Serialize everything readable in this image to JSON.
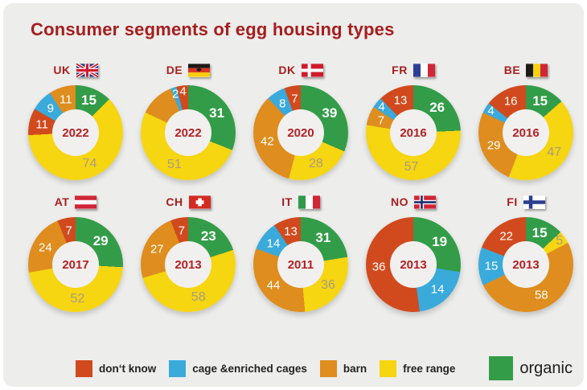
{
  "title": "Consumer segments of egg housing types",
  "colors": {
    "dont_know": "#d14a1e",
    "cage": "#3aaadb",
    "barn": "#de8d1e",
    "free_range": "#f6d511",
    "organic": "#339c48",
    "title_red": "#a51e1f",
    "year_red": "#b22125",
    "label_on_yellow": "#a89e82",
    "card_background": "#ededeb"
  },
  "legend": [
    {
      "key": "dont_know",
      "label": "don‘t know"
    },
    {
      "key": "cage",
      "label": "cage &enriched cages"
    },
    {
      "key": "barn",
      "label": "barn"
    },
    {
      "key": "free_range",
      "label": "free range"
    },
    {
      "key": "organic",
      "label": "organic"
    }
  ],
  "chart_data": {
    "type": "pie",
    "subtype": "donut-small-multiples",
    "title": "Consumer segments of egg housing types",
    "legend_position": "bottom",
    "categories": [
      "don‘t know",
      "cage &enriched cages",
      "barn",
      "free range",
      "organic"
    ],
    "countries": [
      {
        "code": "UK",
        "year": "2022",
        "segments": [
          {
            "key": "organic",
            "label": "15",
            "value": 15
          },
          {
            "key": "free_range",
            "label": "74",
            "value": 74
          },
          {
            "key": "dont_know",
            "label": "11",
            "value": 11
          },
          {
            "key": "cage",
            "label": "9",
            "value": 9
          },
          {
            "key": "barn",
            "label": "11",
            "value": 11
          }
        ]
      },
      {
        "code": "DE",
        "year": "2022",
        "segments": [
          {
            "key": "organic",
            "label": "31",
            "value": 31
          },
          {
            "key": "free_range",
            "label": "51",
            "value": 51
          },
          {
            "key": "barn",
            "label": "",
            "value": 12
          },
          {
            "key": "cage",
            "label": "2",
            "value": 2
          },
          {
            "key": "dont_know",
            "label": "4",
            "value": 4
          }
        ]
      },
      {
        "code": "DK",
        "year": "2020",
        "segments": [
          {
            "key": "organic",
            "label": "39",
            "value": 39
          },
          {
            "key": "free_range",
            "label": "28",
            "value": 28
          },
          {
            "key": "barn",
            "label": "42",
            "value": 42
          },
          {
            "key": "cage",
            "label": "8",
            "value": 8
          },
          {
            "key": "dont_know",
            "label": "7",
            "value": 7
          }
        ]
      },
      {
        "code": "FR",
        "year": "2016",
        "segments": [
          {
            "key": "organic",
            "label": "26",
            "value": 26
          },
          {
            "key": "free_range",
            "label": "57",
            "value": 57
          },
          {
            "key": "barn",
            "label": "7",
            "value": 7
          },
          {
            "key": "cage",
            "label": "4",
            "value": 4
          },
          {
            "key": "dont_know",
            "label": "13",
            "value": 13
          }
        ]
      },
      {
        "code": "BE",
        "year": "2016",
        "segments": [
          {
            "key": "organic",
            "label": "15",
            "value": 15
          },
          {
            "key": "free_range",
            "label": "47",
            "value": 47
          },
          {
            "key": "barn",
            "label": "29",
            "value": 29
          },
          {
            "key": "cage",
            "label": "4",
            "value": 4
          },
          {
            "key": "dont_know",
            "label": "16",
            "value": 16
          }
        ]
      },
      {
        "code": "AT",
        "year": "2017",
        "segments": [
          {
            "key": "organic",
            "label": "29",
            "value": 29
          },
          {
            "key": "free_range",
            "label": "52",
            "value": 52
          },
          {
            "key": "barn",
            "label": "24",
            "value": 24
          },
          {
            "key": "dont_know",
            "label": "7",
            "value": 7
          }
        ]
      },
      {
        "code": "CH",
        "year": "2013",
        "segments": [
          {
            "key": "organic",
            "label": "23",
            "value": 23
          },
          {
            "key": "free_range",
            "label": "58",
            "value": 58
          },
          {
            "key": "barn",
            "label": "27",
            "value": 27
          },
          {
            "key": "dont_know",
            "label": "7",
            "value": 7
          }
        ]
      },
      {
        "code": "IT",
        "year": "2011",
        "segments": [
          {
            "key": "organic",
            "label": "31",
            "value": 31
          },
          {
            "key": "free_range",
            "label": "36",
            "value": 36
          },
          {
            "key": "barn",
            "label": "44",
            "value": 44
          },
          {
            "key": "cage",
            "label": "14",
            "value": 14
          },
          {
            "key": "dont_know",
            "label": "13",
            "value": 13
          }
        ]
      },
      {
        "code": "NO",
        "year": "2013",
        "segments": [
          {
            "key": "organic",
            "label": "19",
            "value": 19
          },
          {
            "key": "cage",
            "label": "14",
            "value": 14
          },
          {
            "key": "dont_know",
            "label": "36",
            "value": 36
          }
        ]
      },
      {
        "code": "FI",
        "year": "2013",
        "segments": [
          {
            "key": "organic",
            "label": "15",
            "value": 15
          },
          {
            "key": "free_range",
            "label": "5",
            "value": 5
          },
          {
            "key": "barn",
            "label": "58",
            "value": 58
          },
          {
            "key": "cage",
            "label": "15",
            "value": 15
          },
          {
            "key": "dont_know",
            "label": "22",
            "value": 22
          }
        ]
      }
    ]
  }
}
